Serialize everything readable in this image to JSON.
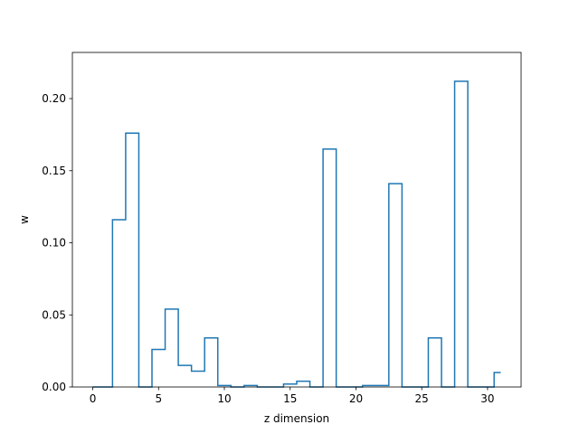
{
  "chart_data": {
    "type": "step",
    "title": "",
    "xlabel": "z dimension",
    "ylabel": "w",
    "xlim": [
      -1.55,
      32.55
    ],
    "ylim": [
      0,
      0.232
    ],
    "xticks": [
      0,
      5,
      10,
      15,
      20,
      25,
      30
    ],
    "xtick_labels": [
      "0",
      "5",
      "10",
      "15",
      "20",
      "25",
      "30"
    ],
    "yticks": [
      0.0,
      0.05,
      0.1,
      0.15,
      0.2
    ],
    "ytick_labels": [
      "0.00",
      "0.05",
      "0.10",
      "0.15",
      "0.20"
    ],
    "grid": false,
    "series": [
      {
        "color": "#1f77b4",
        "step_where": "mid",
        "x": [
          0,
          1,
          2,
          3,
          4,
          5,
          6,
          7,
          8,
          9,
          10,
          11,
          12,
          13,
          14,
          15,
          16,
          17,
          18,
          19,
          20,
          21,
          22,
          23,
          24,
          25,
          26,
          27,
          28,
          29,
          30,
          31
        ],
        "values": [
          0.0,
          0.0,
          0.116,
          0.176,
          0.0,
          0.026,
          0.054,
          0.015,
          0.011,
          0.034,
          0.001,
          0.0,
          0.001,
          0.0,
          0.0,
          0.002,
          0.004,
          0.0,
          0.165,
          0.0,
          0.0,
          0.001,
          0.001,
          0.141,
          0.0,
          0.0,
          0.034,
          0.0,
          0.212,
          0.0,
          0.0,
          0.01
        ]
      }
    ]
  }
}
